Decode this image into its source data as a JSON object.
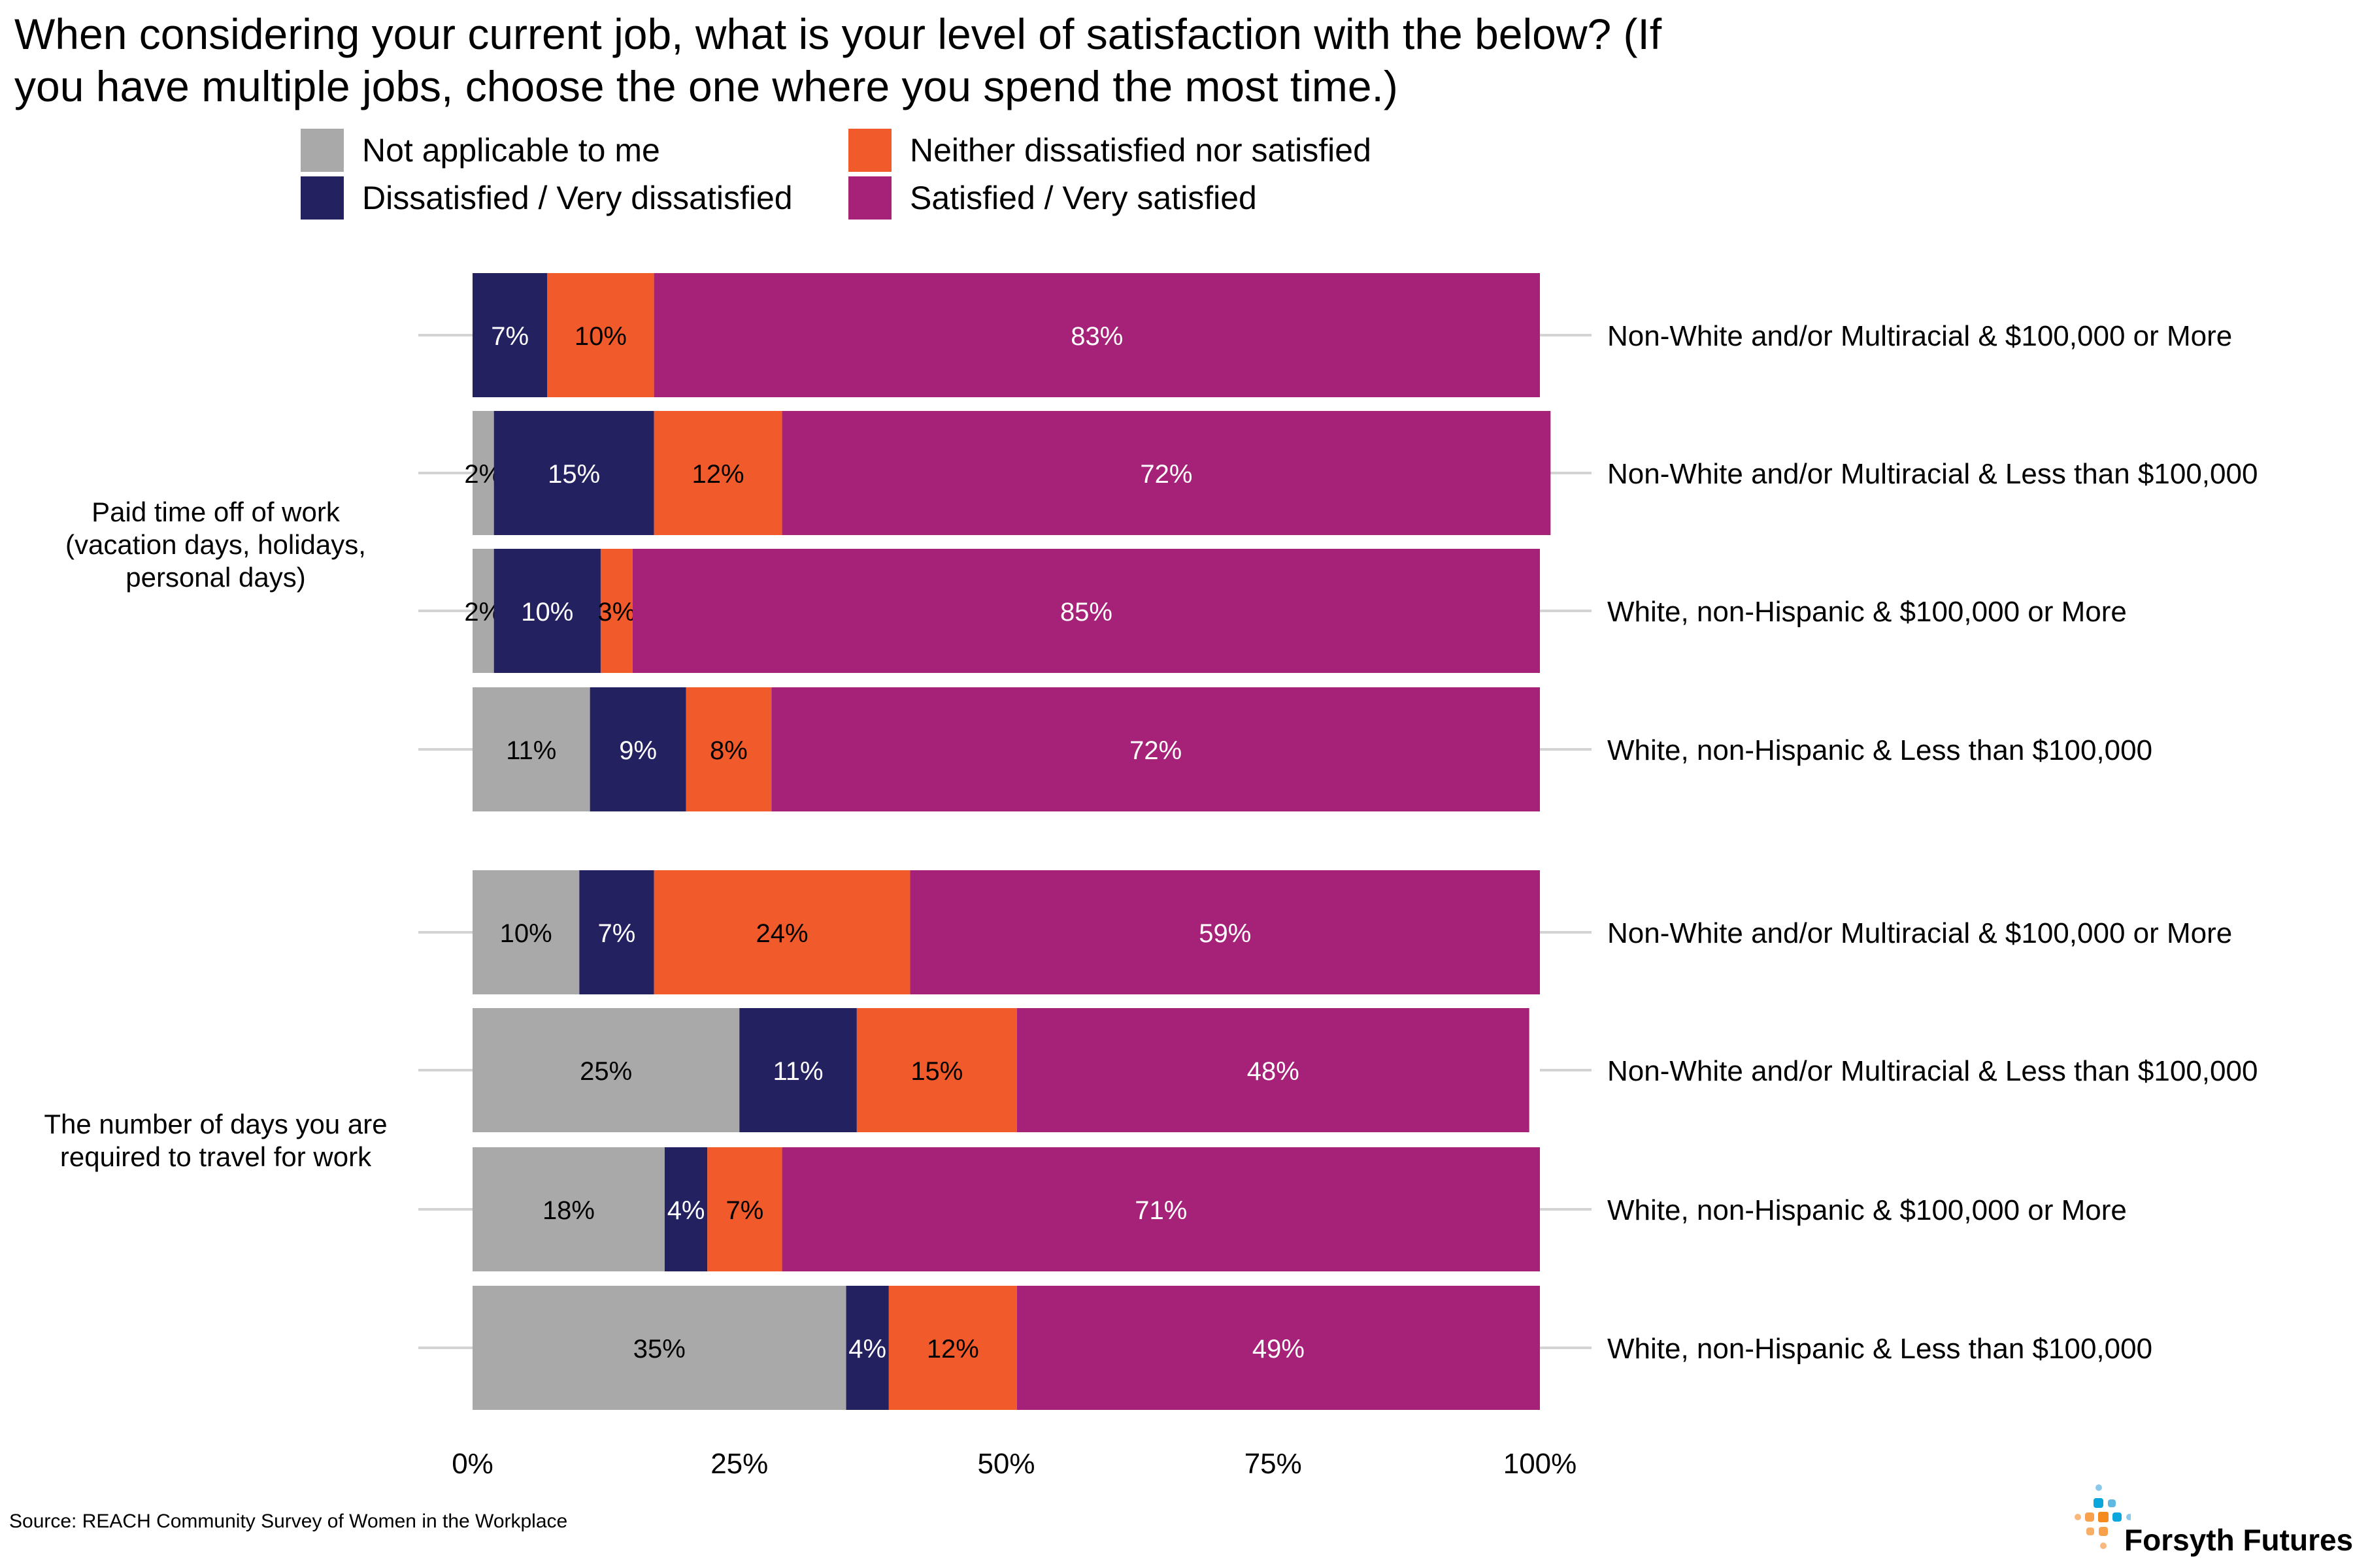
{
  "chart_data": {
    "type": "bar",
    "orientation": "horizontal",
    "stacked": true,
    "title": "When considering your current job, what is your level of satisfaction with the below? (If you have multiple jobs, choose the one where you spend the most time.)",
    "xlabel": "",
    "ylabel": "",
    "xlim": [
      0,
      100
    ],
    "x_ticks": [
      "0%",
      "25%",
      "50%",
      "75%",
      "100%"
    ],
    "x_tick_values": [
      0,
      25,
      50,
      75,
      100
    ],
    "legend_position": "top",
    "grid": false,
    "legend": [
      {
        "name": "Not applicable to me",
        "color": "#A9A9A9"
      },
      {
        "name": "Neither dissatisfied nor satisfied",
        "color": "#F15A2B"
      },
      {
        "name": "Dissatisfied / Very dissatisfied",
        "color": "#242160"
      },
      {
        "name": "Satisfied / Very satisfied",
        "color": "#A62279"
      }
    ],
    "series_order": [
      "Not applicable to me",
      "Dissatisfied / Very dissatisfied",
      "Neither dissatisfied nor satisfied",
      "Satisfied / Very satisfied"
    ],
    "series_colors": [
      "#A9A9A9",
      "#242160",
      "#F15A2B",
      "#A62279"
    ],
    "series_label_colors": [
      "#000000",
      "#FFFFFF",
      "#000000",
      "#FFFFFF"
    ],
    "groups": [
      {
        "label": "Paid time off of work (vacation days, holidays, personal days)",
        "label_lines": [
          "Paid time off of work",
          "(vacation days, holidays,",
          "personal days)"
        ],
        "rows": [
          {
            "category": "Non-White and/or Multiracial & $100,000 or More",
            "values": [
              0,
              7,
              10,
              83
            ],
            "labels": [
              "",
              "7%",
              "10%",
              "83%"
            ]
          },
          {
            "category": "Non-White and/or Multiracial & Less than $100,000",
            "values": [
              2,
              15,
              12,
              72
            ],
            "labels": [
              "2%",
              "15%",
              "12%",
              "72%"
            ]
          },
          {
            "category": "White, non-Hispanic & $100,000 or More",
            "values": [
              2,
              10,
              3,
              85
            ],
            "labels": [
              "2%",
              "10%",
              "3%",
              "85%"
            ]
          },
          {
            "category": "White, non-Hispanic & Less than $100,000",
            "values": [
              11,
              9,
              8,
              72
            ],
            "labels": [
              "11%",
              "9%",
              "8%",
              "72%"
            ]
          }
        ]
      },
      {
        "label": "The number of days you are required to travel for work",
        "label_lines": [
          "The number of days you are",
          "required to travel for work"
        ],
        "rows": [
          {
            "category": "Non-White and/or Multiracial & $100,000 or More",
            "values": [
              10,
              7,
              24,
              59
            ],
            "labels": [
              "10%",
              "7%",
              "24%",
              "59%"
            ]
          },
          {
            "category": "Non-White and/or Multiracial & Less than $100,000",
            "values": [
              25,
              11,
              15,
              48
            ],
            "labels": [
              "25%",
              "11%",
              "15%",
              "48%"
            ]
          },
          {
            "category": "White, non-Hispanic & $100,000 or More",
            "values": [
              18,
              4,
              7,
              71
            ],
            "labels": [
              "18%",
              "4%",
              "7%",
              "71%"
            ]
          },
          {
            "category": "White, non-Hispanic & Less than $100,000",
            "values": [
              35,
              4,
              12,
              49
            ],
            "labels": [
              "35%",
              "4%",
              "12%",
              "49%"
            ]
          }
        ]
      }
    ]
  },
  "title_lines": [
    "When considering your current job, what is your level of satisfaction with the below? (If",
    "you have multiple jobs, choose the one where you spend the most time.)"
  ],
  "legend": {
    "items": [
      {
        "label": "Not applicable to me",
        "color": "#A9A9A9"
      },
      {
        "label": "Neither dissatisfied nor satisfied",
        "color": "#F15A2B"
      },
      {
        "label": "Dissatisfied / Very dissatisfied",
        "color": "#242160"
      },
      {
        "label": "Satisfied / Very satisfied",
        "color": "#A62279"
      }
    ]
  },
  "source": "Source: REACH Community Survey of Women in the Workplace",
  "logo": {
    "text": "Forsyth Futures"
  }
}
